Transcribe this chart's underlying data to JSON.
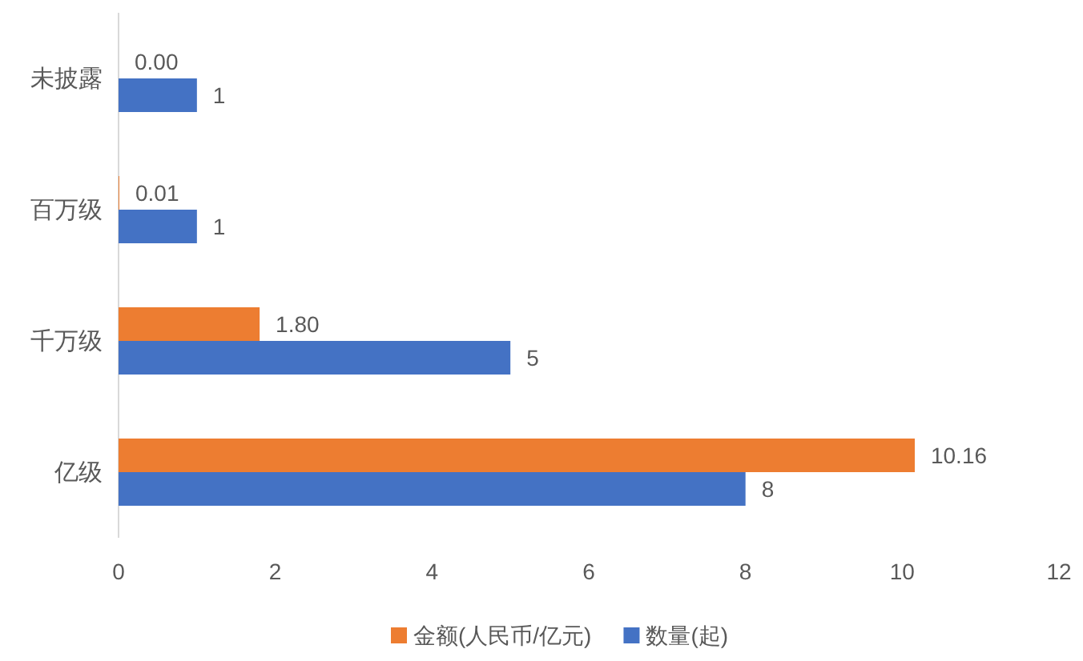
{
  "chart_data": {
    "type": "bar",
    "orientation": "horizontal",
    "categories": [
      "未披露",
      "百万级",
      "千万级",
      "亿级"
    ],
    "series": [
      {
        "name": "金额(人民币/亿元)",
        "color": "#ed7d31",
        "values": [
          0,
          0.01,
          1.8,
          10.16
        ],
        "value_labels": [
          "0.00",
          "0.01",
          "1.80",
          "10.16"
        ]
      },
      {
        "name": "数量(起)",
        "color": "#4472c4",
        "values": [
          1,
          1,
          5,
          8
        ],
        "value_labels": [
          "1",
          "1",
          "5",
          "8"
        ]
      }
    ],
    "xlim": [
      0,
      12
    ],
    "xticks": [
      0,
      2,
      4,
      6,
      8,
      10,
      12
    ],
    "grid": false,
    "legend": "bottom"
  }
}
